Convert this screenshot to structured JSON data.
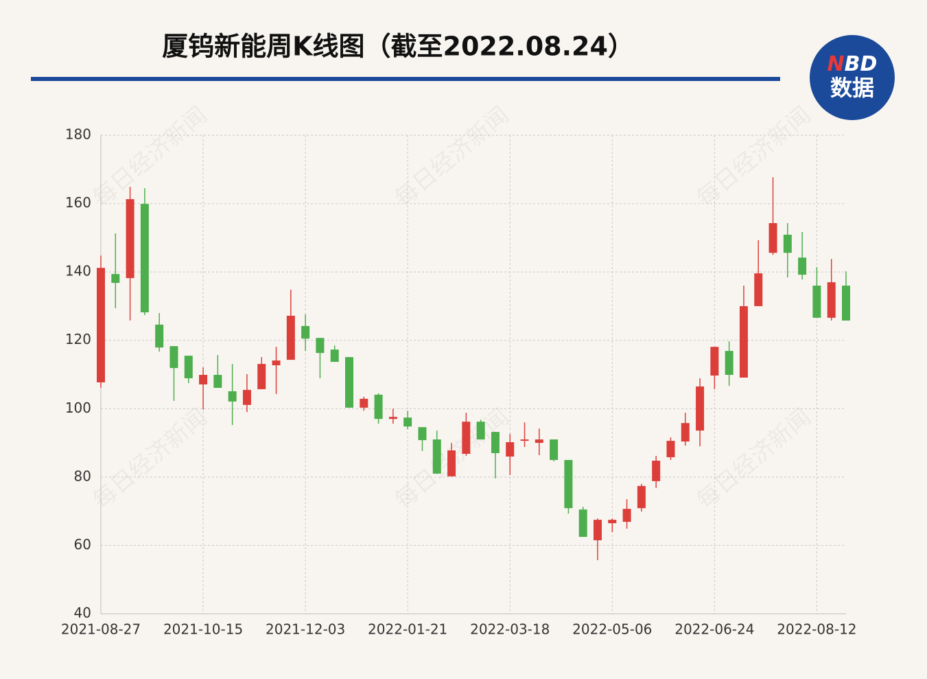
{
  "chart_data": {
    "type": "candlestick",
    "title": "厦钨新能周K线图（截至2022.08.24）",
    "watermark": "每日经济新闻",
    "logo": {
      "top": "NBD",
      "bottom": "数据"
    },
    "categories": [
      "2021-08-27",
      null,
      null,
      null,
      null,
      null,
      null,
      "2021-10-15",
      null,
      null,
      null,
      null,
      null,
      null,
      "2021-12-03",
      null,
      null,
      null,
      null,
      null,
      null,
      "2022-01-21",
      null,
      null,
      null,
      null,
      null,
      null,
      "2022-03-18",
      null,
      null,
      null,
      null,
      null,
      null,
      "2022-05-06",
      null,
      null,
      null,
      null,
      null,
      null,
      "2022-06-24",
      null,
      null,
      null,
      null,
      null,
      null,
      "2022-08-12",
      null,
      null
    ],
    "up_color": "#dc3f3a",
    "down_color": "#4cae4c",
    "series": [
      {
        "open": [
          107.7,
          139.4,
          138.2,
          159.9,
          124.6,
          118.3,
          115.5,
          107.1,
          109.9,
          105.1,
          101.1,
          105.7,
          112.7,
          114.3,
          124.2,
          120.7,
          117.3,
          115.1,
          100.3,
          104.1,
          97.0,
          97.4,
          94.6,
          91.0,
          80.2,
          86.8,
          96.2,
          93.2,
          86.0,
          90.6,
          90.0,
          91.0,
          85.0,
          70.5,
          61.5,
          66.5,
          66.9,
          70.9,
          78.8,
          85.8,
          90.4,
          93.6,
          109.7,
          116.9,
          109.1,
          130.0,
          145.6,
          150.9,
          144.2,
          136.0,
          126.6,
          136.0
        ],
        "high": [
          144.8,
          151.3,
          164.9,
          164.5,
          128.0,
          118.3,
          115.5,
          112.1,
          115.7,
          113.1,
          110.1,
          115.1,
          118.1,
          134.8,
          127.6,
          120.7,
          118.5,
          115.1,
          103.5,
          104.5,
          100.0,
          99.4,
          94.6,
          93.6,
          90.0,
          98.8,
          96.8,
          93.2,
          92.6,
          96.0,
          94.2,
          91.0,
          85.0,
          71.3,
          67.9,
          67.9,
          73.5,
          78.0,
          86.2,
          91.6,
          98.8,
          108.9,
          118.1,
          119.7,
          136.0,
          149.3,
          167.7,
          154.3,
          151.7,
          141.4,
          143.8,
          140.2
        ],
        "low": [
          106.1,
          129.4,
          125.8,
          127.4,
          116.7,
          102.3,
          107.5,
          99.7,
          106.1,
          95.2,
          99.0,
          105.7,
          104.3,
          114.3,
          116.9,
          108.9,
          113.7,
          100.3,
          99.4,
          95.6,
          95.6,
          94.0,
          87.6,
          81.0,
          80.2,
          86.2,
          91.0,
          79.6,
          80.6,
          88.8,
          86.4,
          84.6,
          69.3,
          62.5,
          55.7,
          63.9,
          64.9,
          69.9,
          76.8,
          85.0,
          89.2,
          89.0,
          105.7,
          106.7,
          109.1,
          130.0,
          145.0,
          138.4,
          137.8,
          126.6,
          125.8,
          125.8
        ],
        "close": [
          141.2,
          136.8,
          161.3,
          128.2,
          117.9,
          111.9,
          108.9,
          109.9,
          106.1,
          102.1,
          105.5,
          113.1,
          114.1,
          127.2,
          120.5,
          116.3,
          113.7,
          100.3,
          102.9,
          97.0,
          97.6,
          94.8,
          90.8,
          81.0,
          87.8,
          96.2,
          91.0,
          87.0,
          90.2,
          91.0,
          91.0,
          85.0,
          70.9,
          62.5,
          67.5,
          67.5,
          70.7,
          77.4,
          84.8,
          90.6,
          95.8,
          106.5,
          118.1,
          109.9,
          130.0,
          139.6,
          154.3,
          145.6,
          139.2,
          126.6,
          137.0,
          125.8
        ]
      }
    ],
    "ylim": [
      40,
      180
    ],
    "yticks": [
      40,
      60,
      80,
      100,
      120,
      140,
      160,
      180
    ],
    "grid": true
  }
}
